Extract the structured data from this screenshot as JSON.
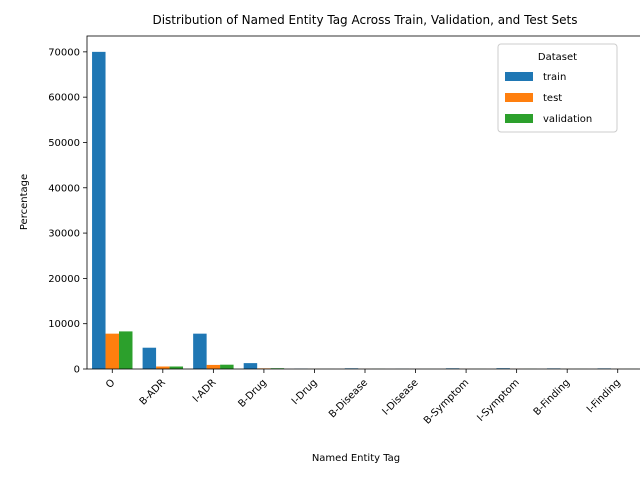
{
  "chart_data": {
    "type": "bar",
    "title": "Distribution of Named Entity Tag Across Train, Validation, and Test Sets",
    "xlabel": "Named Entity Tag",
    "ylabel": "Percentage",
    "categories": [
      "O",
      "B-ADR",
      "I-ADR",
      "B-Drug",
      "I-Drug",
      "B-Disease",
      "I-Disease",
      "B-Symptom",
      "I-Symptom",
      "B-Finding",
      "I-Finding"
    ],
    "series": [
      {
        "name": "train",
        "color": "#1f77b4",
        "values": [
          70000,
          4700,
          7800,
          1300,
          60,
          150,
          30,
          150,
          170,
          130,
          130
        ]
      },
      {
        "name": "test",
        "color": "#ff7f0e",
        "values": [
          7800,
          550,
          900,
          140,
          10,
          20,
          5,
          20,
          25,
          15,
          15
        ]
      },
      {
        "name": "validation",
        "color": "#2ca02c",
        "values": [
          8300,
          550,
          950,
          170,
          10,
          25,
          5,
          20,
          25,
          20,
          20
        ]
      }
    ],
    "ylim": [
      0,
      73500
    ],
    "yticks": [
      0,
      10000,
      20000,
      30000,
      40000,
      50000,
      60000,
      70000
    ],
    "legend": {
      "title": "Dataset",
      "placement": "top-right"
    },
    "grid": false
  }
}
